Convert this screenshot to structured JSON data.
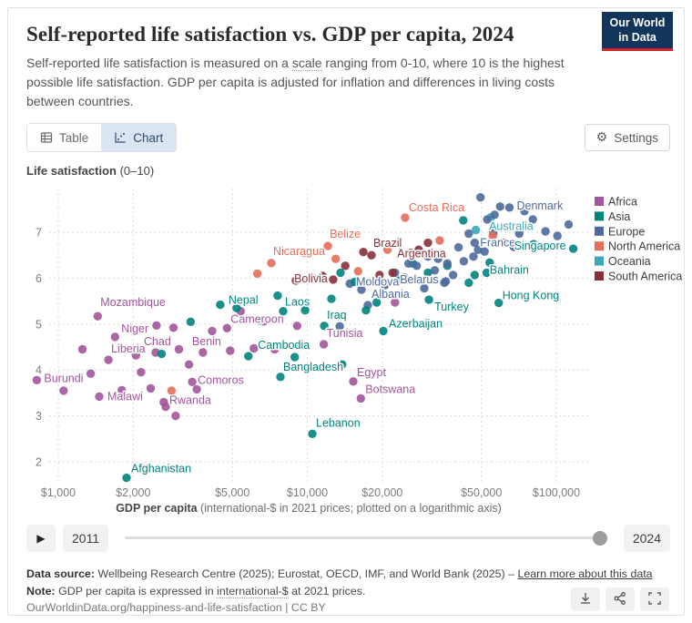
{
  "header": {
    "title": "Self-reported life satisfaction vs. GDP per capita, 2024",
    "subtitle_pre": "Self-reported life satisfaction is measured on a ",
    "subtitle_term": "scale",
    "subtitle_post": " ranging from 0-10, where 10 is the highest possible life satisfaction. GDP per capita is adjusted for inflation and differences in living costs between countries.",
    "logo_line1": "Our World",
    "logo_line2": "in Data",
    "logo_bg": "#12355b",
    "logo_accent": "#d1242c"
  },
  "toolbar": {
    "table_tab": "Table",
    "chart_tab": "Chart",
    "settings": "Settings"
  },
  "chart_data": {
    "type": "scatter",
    "title": "Self-reported life satisfaction vs. GDP per capita, 2024",
    "y_axis": {
      "title_bold": "Life satisfaction",
      "title_rest": " (0–10)",
      "ticks": [
        2,
        3,
        4,
        5,
        6,
        7
      ],
      "range": [
        1.5,
        8
      ]
    },
    "x_axis": {
      "title_bold": "GDP per capita",
      "title_rest": " (international-$ in 2021 prices; plotted on a logarithmic axis)",
      "scale": "log",
      "ticks": [
        {
          "value": 1000,
          "label": "$1,000"
        },
        {
          "value": 2000,
          "label": "$2,000"
        },
        {
          "value": 5000,
          "label": "$5,000"
        },
        {
          "value": 10000,
          "label": "$10,000"
        },
        {
          "value": 20000,
          "label": "$20,000"
        },
        {
          "value": 50000,
          "label": "$50,000"
        },
        {
          "value": 100000,
          "label": "$100,000"
        }
      ]
    },
    "legend": [
      {
        "name": "Africa",
        "color": "#a2559c"
      },
      {
        "name": "Asia",
        "color": "#00847e"
      },
      {
        "name": "Europe",
        "color": "#4c6a9c"
      },
      {
        "name": "North America",
        "color": "#e56e5a"
      },
      {
        "name": "Oceania",
        "color": "#38aaba"
      },
      {
        "name": "South America",
        "color": "#883039"
      }
    ],
    "continent_colors": {
      "AF": "#a2559c",
      "AS": "#00847e",
      "EU": "#4c6a9c",
      "NA": "#e56e5a",
      "OC": "#38aaba",
      "SA": "#883039"
    },
    "points": [
      [
        "Burundi",
        820,
        3.78,
        "AF",
        "start",
        8,
        2
      ],
      [
        "Malawi",
        1460,
        3.42,
        "AF",
        "start",
        9,
        4
      ],
      [
        "Afghanistan",
        1880,
        1.65,
        "AS",
        "start",
        5,
        -6
      ],
      [
        "Mozambique",
        1440,
        5.17,
        "AF",
        "start",
        3,
        -11
      ],
      [
        "Niger",
        1690,
        4.72,
        "AF",
        "start",
        7,
        -5
      ],
      [
        "Liberia",
        1590,
        4.22,
        "AF",
        "start",
        3,
        -8
      ],
      [
        "Rwanda",
        2700,
        3.2,
        "AF",
        "start",
        4,
        -3
      ],
      [
        "Chad",
        2460,
        4.38,
        "AF",
        "middle",
        2,
        -8
      ],
      [
        "Comoros",
        3450,
        3.74,
        "AF",
        "start",
        6,
        2
      ],
      [
        "Benin",
        3810,
        4.38,
        "AF",
        "middle",
        4,
        -8
      ],
      [
        "Cameroon",
        4760,
        4.91,
        "AF",
        "start",
        4,
        -6
      ],
      [
        "Nepal",
        4470,
        5.42,
        "AS",
        "start",
        9,
        -1
      ],
      [
        "Cambodia",
        8900,
        4.28,
        "AS",
        "middle",
        -12,
        -9
      ],
      [
        "Bangladesh",
        7800,
        3.85,
        "AS",
        "start",
        3,
        -7
      ],
      [
        "Laos",
        8000,
        5.28,
        "AS",
        "start",
        2,
        -6
      ],
      [
        "Bolivia",
        12700,
        5.97,
        "SA",
        "end",
        -6,
        3
      ],
      [
        "Nicaragua",
        7170,
        6.33,
        "NA",
        "start",
        2,
        -9
      ],
      [
        "Belize",
        12100,
        6.7,
        "NA",
        "start",
        2,
        -9
      ],
      [
        "Brazil",
        18100,
        6.5,
        "SA",
        "start",
        2,
        -9
      ],
      [
        "Moldova",
        14800,
        5.88,
        "EU",
        "start",
        7,
        2
      ],
      [
        "Belarus",
        36000,
        5.93,
        "EU",
        "end",
        -8,
        2
      ],
      [
        "Albania",
        17500,
        5.41,
        "EU",
        "start",
        4,
        -8
      ],
      [
        "Turkey",
        30800,
        5.53,
        "AS",
        "start",
        6,
        12
      ],
      [
        "Iraq",
        11700,
        4.96,
        "AS",
        "start",
        3,
        -8
      ],
      [
        "Tunisia",
        11650,
        4.56,
        "AF",
        "start",
        3,
        -8
      ],
      [
        "Azerbaijan",
        20200,
        4.85,
        "AS",
        "start",
        6,
        -4
      ],
      [
        "Egypt",
        15300,
        3.75,
        "AF",
        "start",
        4,
        -6
      ],
      [
        "Botswana",
        16400,
        3.38,
        "AF",
        "start",
        5,
        -6
      ],
      [
        "Lebanon",
        10470,
        2.61,
        "AS",
        "start",
        4,
        -8
      ],
      [
        "Hong Kong",
        58700,
        5.46,
        "AS",
        "start",
        4,
        -4
      ],
      [
        "Bahrain",
        54000,
        6.34,
        "AS",
        "start",
        0,
        12
      ],
      [
        "Costa Rica",
        24700,
        7.32,
        "NA",
        "start",
        4,
        -7
      ],
      [
        "Argentina",
        26000,
        6.55,
        "SA",
        "middle",
        12,
        5
      ],
      [
        "France",
        47000,
        6.77,
        "EU",
        "start",
        6,
        4
      ],
      [
        "Singapore",
        117000,
        6.64,
        "AS",
        "end",
        -8,
        1
      ],
      [
        "Australia",
        54600,
        7.33,
        "OC",
        "start",
        -2,
        14
      ],
      [
        "Denmark",
        64800,
        7.54,
        "EU",
        "start",
        8,
        2
      ],
      [
        "",
        1050,
        3.55,
        "AF"
      ],
      [
        "",
        1250,
        4.45,
        "AF"
      ],
      [
        "",
        1350,
        3.92,
        "AF"
      ],
      [
        "",
        1800,
        3.56,
        "AF"
      ],
      [
        "",
        2050,
        4.32,
        "AF"
      ],
      [
        "",
        2150,
        3.95,
        "AF"
      ],
      [
        "",
        2350,
        3.6,
        "AF"
      ],
      [
        "",
        2480,
        4.97,
        "AF"
      ],
      [
        "",
        2650,
        3.3,
        "AF"
      ],
      [
        "",
        2900,
        4.92,
        "AF"
      ],
      [
        "",
        2960,
        3.0,
        "AF"
      ],
      [
        "",
        3050,
        4.45,
        "AF"
      ],
      [
        "",
        3350,
        4.12,
        "AF"
      ],
      [
        "",
        3600,
        3.58,
        "AF"
      ],
      [
        "",
        4150,
        4.85,
        "AF"
      ],
      [
        "",
        4900,
        4.42,
        "AF"
      ],
      [
        "",
        5400,
        5.28,
        "AF"
      ],
      [
        "",
        6100,
        4.47,
        "AF"
      ],
      [
        "",
        6700,
        5.06,
        "AF"
      ],
      [
        "",
        7400,
        4.45,
        "AF"
      ],
      [
        "",
        9100,
        4.96,
        "AF"
      ],
      [
        "",
        13200,
        5.18,
        "AF"
      ],
      [
        "",
        22500,
        5.47,
        "AF"
      ],
      [
        "",
        2600,
        4.35,
        "AS"
      ],
      [
        "",
        3400,
        5.05,
        "AS"
      ],
      [
        "",
        4200,
        4.62,
        "AS"
      ],
      [
        "",
        5200,
        5.35,
        "AS"
      ],
      [
        "",
        5800,
        4.3,
        "AS"
      ],
      [
        "",
        6400,
        5.08,
        "AS"
      ],
      [
        "",
        7600,
        5.62,
        "AS"
      ],
      [
        "",
        9300,
        4.55,
        "AS"
      ],
      [
        "",
        9800,
        5.3,
        "AS"
      ],
      [
        "",
        10500,
        6.0,
        "AS"
      ],
      [
        "",
        12500,
        5.55,
        "AS"
      ],
      [
        "",
        13600,
        6.12,
        "AS"
      ],
      [
        "",
        13800,
        4.12,
        "AS"
      ],
      [
        "",
        15500,
        5.92,
        "AS"
      ],
      [
        "",
        17200,
        5.3,
        "AS"
      ],
      [
        "",
        19000,
        5.47,
        "AS"
      ],
      [
        "",
        23500,
        5.95,
        "AS"
      ],
      [
        "",
        26500,
        6.32,
        "AS"
      ],
      [
        "",
        30500,
        6.12,
        "AS"
      ],
      [
        "",
        36500,
        6.27,
        "AS"
      ],
      [
        "",
        42300,
        7.26,
        "AS"
      ],
      [
        "",
        44500,
        5.9,
        "AS"
      ],
      [
        "",
        47000,
        6.07,
        "AS"
      ],
      [
        "",
        52500,
        6.12,
        "AS"
      ],
      [
        "",
        81000,
        6.74,
        "AS"
      ],
      [
        "",
        13500,
        4.95,
        "EU"
      ],
      [
        "",
        16500,
        5.75,
        "EU"
      ],
      [
        "",
        20500,
        5.85,
        "EU"
      ],
      [
        "",
        22500,
        6.12,
        "EU"
      ],
      [
        "",
        24500,
        6.02,
        "EU"
      ],
      [
        "",
        25500,
        6.32,
        "EU"
      ],
      [
        "",
        27500,
        6.27,
        "EU"
      ],
      [
        "",
        29500,
        5.78,
        "EU"
      ],
      [
        "",
        30500,
        6.47,
        "EU"
      ],
      [
        "",
        32500,
        6.17,
        "EU"
      ],
      [
        "",
        33500,
        6.42,
        "EU"
      ],
      [
        "",
        35500,
        5.9,
        "EU"
      ],
      [
        "",
        36500,
        6.32,
        "EU"
      ],
      [
        "",
        38500,
        6.07,
        "EU"
      ],
      [
        "",
        40500,
        6.67,
        "EU"
      ],
      [
        "",
        42500,
        6.37,
        "EU"
      ],
      [
        "",
        44500,
        6.97,
        "EU"
      ],
      [
        "",
        46500,
        6.47,
        "EU"
      ],
      [
        "",
        48500,
        6.62,
        "EU"
      ],
      [
        "",
        49600,
        7.76,
        "EU"
      ],
      [
        "",
        51500,
        6.58,
        "EU"
      ],
      [
        "",
        52800,
        7.28,
        "EU"
      ],
      [
        "",
        55800,
        6.98,
        "EU"
      ],
      [
        "",
        56500,
        7.38,
        "EU"
      ],
      [
        "",
        59500,
        7.56,
        "EU"
      ],
      [
        "",
        62000,
        6.77,
        "EU"
      ],
      [
        "",
        63500,
        7.12,
        "EU"
      ],
      [
        "",
        67500,
        6.68,
        "EU"
      ],
      [
        "",
        71000,
        6.97,
        "EU"
      ],
      [
        "",
        74500,
        7.46,
        "EU"
      ],
      [
        "",
        80500,
        7.28,
        "EU"
      ],
      [
        "",
        90500,
        7.02,
        "EU"
      ],
      [
        "",
        101000,
        6.92,
        "EU"
      ],
      [
        "",
        112000,
        7.17,
        "EU"
      ],
      [
        "",
        2850,
        3.55,
        "NA"
      ],
      [
        "",
        6300,
        6.1,
        "NA"
      ],
      [
        "",
        9700,
        6.55,
        "NA"
      ],
      [
        "",
        13000,
        6.42,
        "NA"
      ],
      [
        "",
        16000,
        6.15,
        "NA"
      ],
      [
        "",
        21000,
        6.62,
        "NA"
      ],
      [
        "",
        34000,
        6.82,
        "NA"
      ],
      [
        "",
        55500,
        6.92,
        "NA"
      ],
      [
        "",
        67000,
        6.76,
        "NA"
      ],
      [
        "",
        9000,
        5.95,
        "SA"
      ],
      [
        "",
        11500,
        6.05,
        "SA"
      ],
      [
        "",
        14200,
        6.27,
        "SA"
      ],
      [
        "",
        16800,
        6.57,
        "SA"
      ],
      [
        "",
        19500,
        6.07,
        "SA"
      ],
      [
        "",
        22000,
        6.12,
        "SA"
      ],
      [
        "",
        28000,
        6.62,
        "SA"
      ],
      [
        "",
        30500,
        6.77,
        "SA"
      ],
      [
        "",
        47500,
        7.05,
        "OC"
      ]
    ]
  },
  "timeline": {
    "play": "▶",
    "start": "2011",
    "end": "2024"
  },
  "footer": {
    "datasource_label": "Data source:",
    "datasource_text": " Wellbeing Research Centre (2025); Eurostat, OECD, IMF, and World Bank (2025) – ",
    "datasource_link": "Learn more about this data",
    "note_label": "Note:",
    "note_pre": " GDP per capita is expressed in ",
    "note_term": "international-$",
    "note_post": " at 2021 prices.",
    "url_line": "OurWorldinData.org/happiness-and-life-satisfaction | CC BY"
  }
}
